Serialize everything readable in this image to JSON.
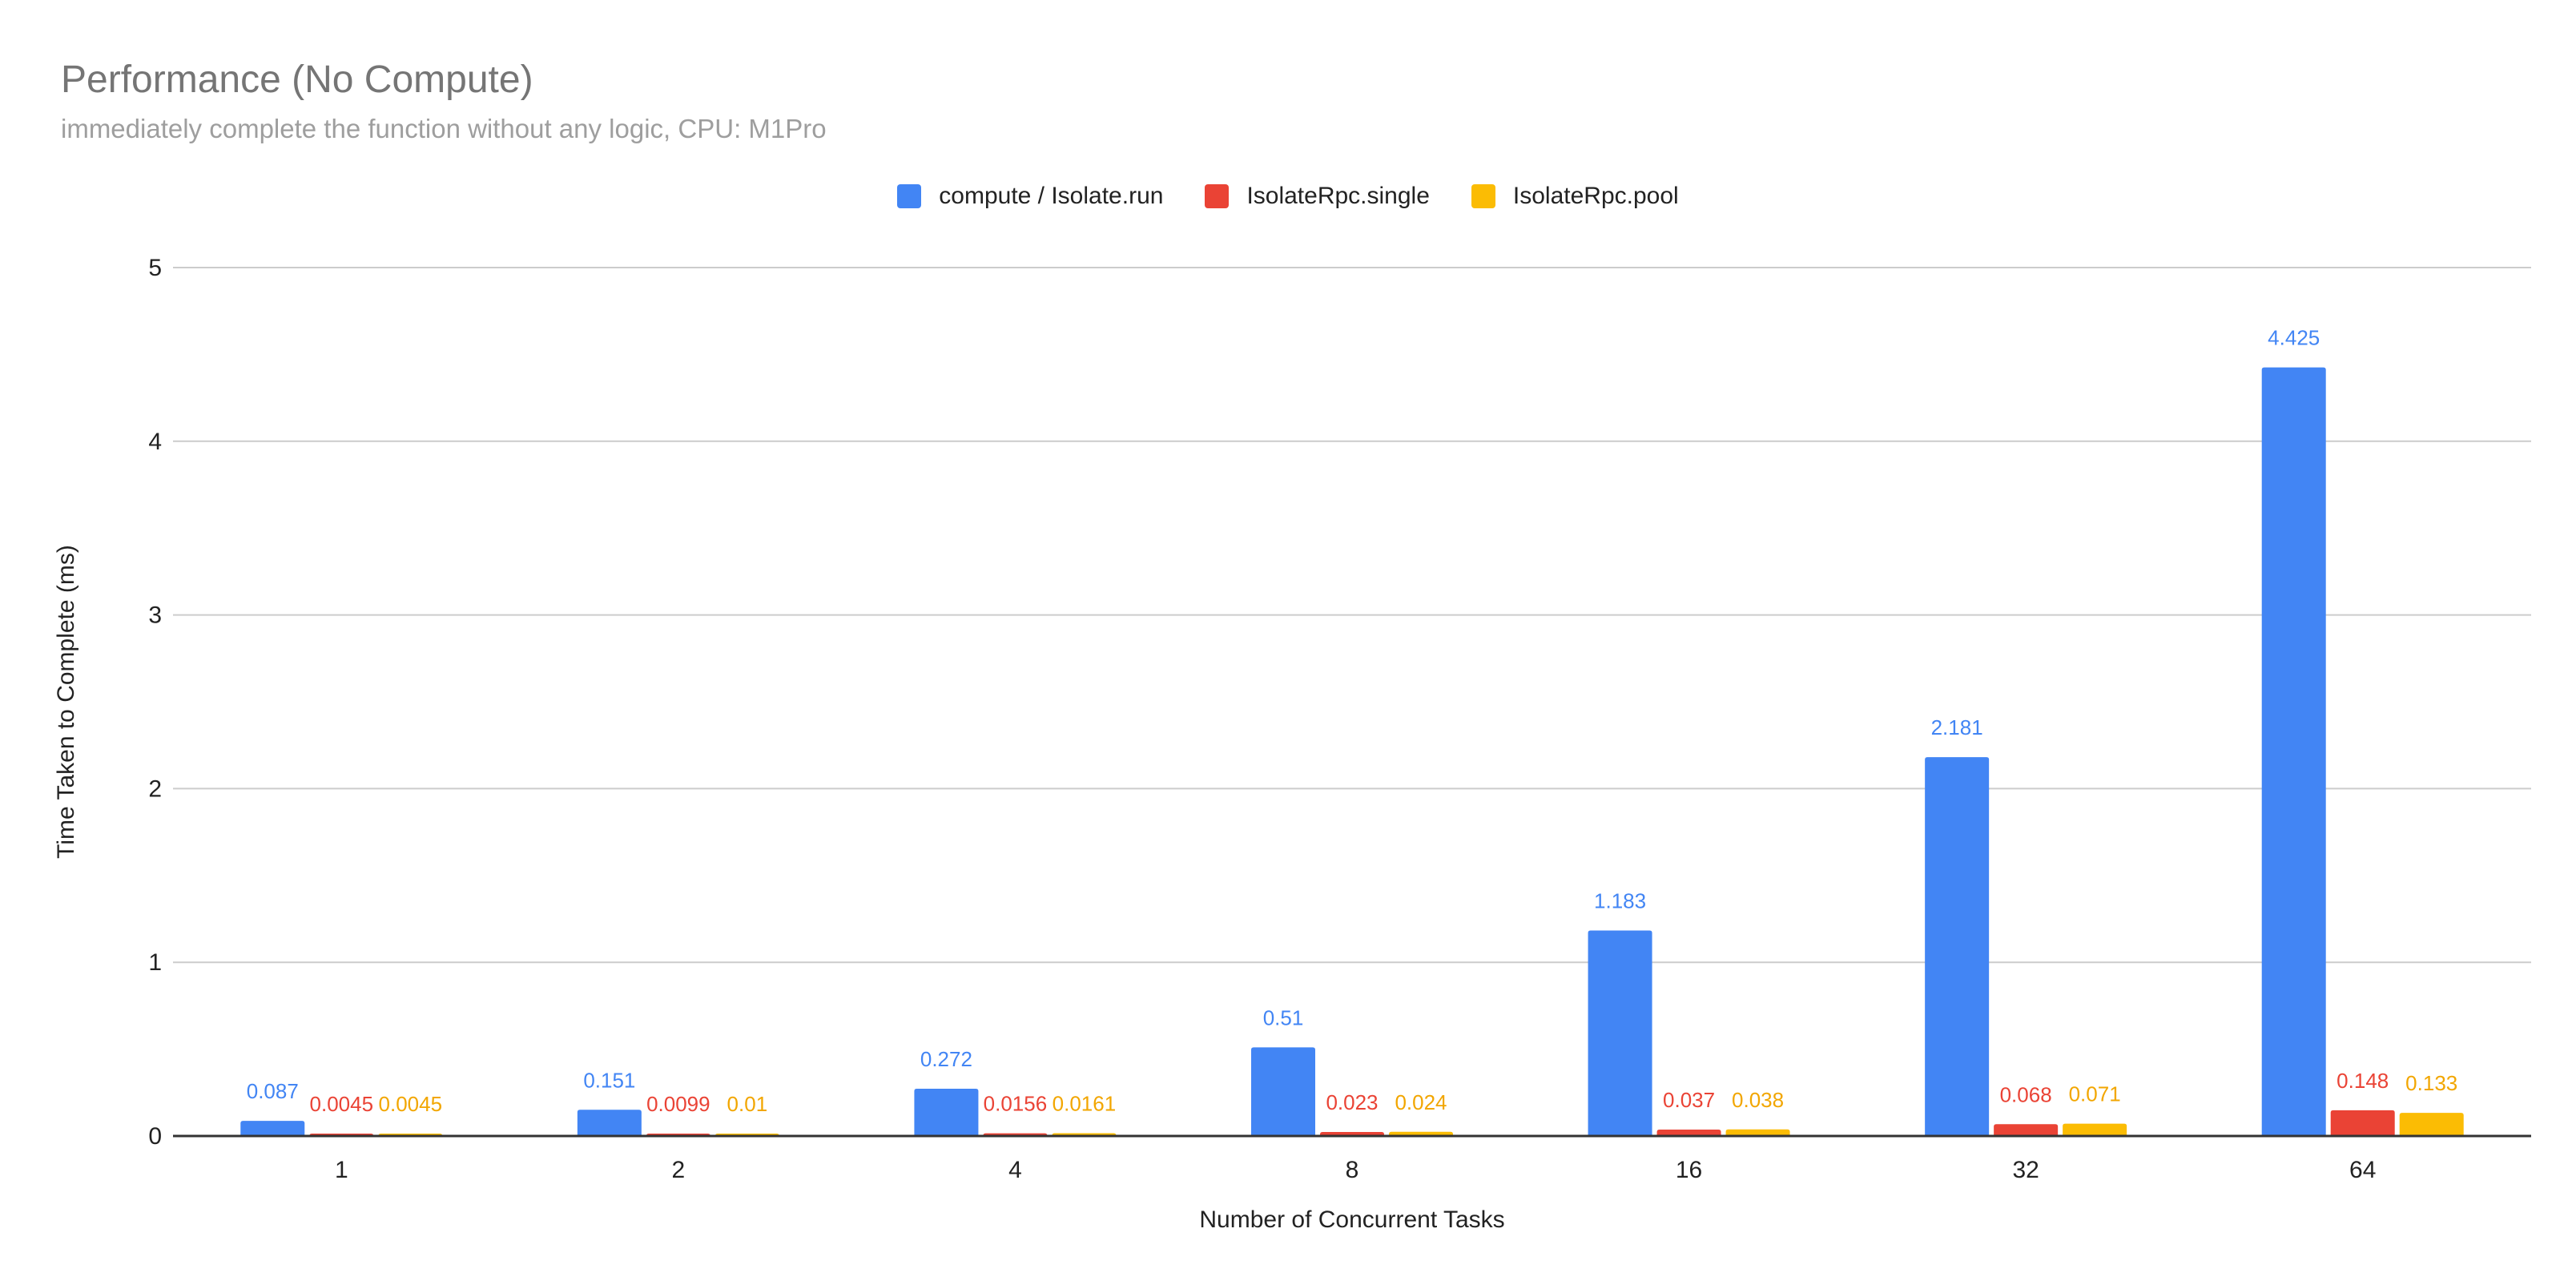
{
  "chart_data": {
    "type": "bar",
    "title": "Performance (No Compute)",
    "subtitle": "immediately complete the function without any logic, CPU: M1Pro",
    "xlabel": "Number of Concurrent Tasks",
    "ylabel": "Time Taken to Complete (ms)",
    "ylim": [
      0,
      5
    ],
    "yticks": [
      "0",
      "1",
      "2",
      "3",
      "4",
      "5"
    ],
    "grid": true,
    "legend_position": "top-center",
    "categories": [
      "1",
      "2",
      "4",
      "8",
      "16",
      "32",
      "64"
    ],
    "series": [
      {
        "name": "compute / Isolate.run",
        "color": "#4285f4",
        "values": [
          0.087,
          0.151,
          0.272,
          0.51,
          1.183,
          2.181,
          4.425
        ],
        "labels": [
          "0.087",
          "0.151",
          "0.272",
          "0.51",
          "1.183",
          "2.181",
          "4.425"
        ]
      },
      {
        "name": "IsolateRpc.single",
        "color": "#ea4335",
        "values": [
          0.0045,
          0.0099,
          0.0156,
          0.023,
          0.037,
          0.068,
          0.148
        ],
        "labels": [
          "0.0045",
          "0.0099",
          "0.0156",
          "0.023",
          "0.037",
          "0.068",
          "0.148"
        ]
      },
      {
        "name": "IsolateRpc.pool",
        "color": "#fbbc04",
        "values": [
          0.0045,
          0.01,
          0.0161,
          0.024,
          0.038,
          0.071,
          0.133
        ],
        "labels": [
          "0.0045",
          "0.01",
          "0.0161",
          "0.024",
          "0.038",
          "0.071",
          "0.133"
        ]
      }
    ]
  },
  "label_colors": [
    "#4285f4",
    "#ea4335",
    "#f2a600"
  ]
}
